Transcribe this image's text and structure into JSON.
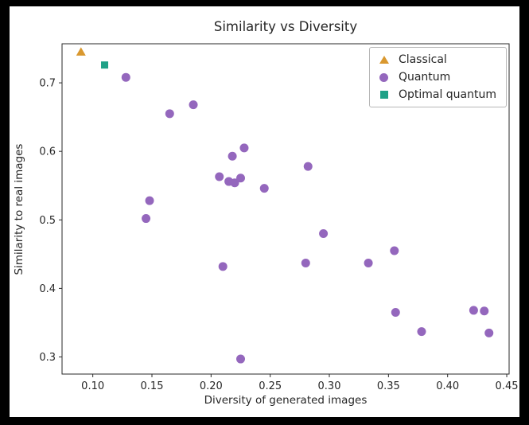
{
  "chart_data": {
    "type": "scatter",
    "title": "Similarity vs Diversity",
    "xlabel": "Diversity of generated images",
    "ylabel": "Similarity to real images",
    "xlim": [
      0.074,
      0.452
    ],
    "ylim": [
      0.275,
      0.757
    ],
    "xticks": [
      0.1,
      0.15,
      0.2,
      0.25,
      0.3,
      0.35,
      0.4,
      0.45
    ],
    "xtick_labels": [
      "0.10",
      "0.15",
      "0.20",
      "0.25",
      "0.30",
      "0.35",
      "0.40",
      "0.45"
    ],
    "yticks": [
      0.3,
      0.4,
      0.5,
      0.6,
      0.7
    ],
    "ytick_labels": [
      "0.3",
      "0.4",
      "0.5",
      "0.6",
      "0.7"
    ],
    "grid": false,
    "legend_position": "upper right",
    "axis_color": "#2a2a2a",
    "series": [
      {
        "name": "Classical",
        "marker": "triangle",
        "color": "#d9982f",
        "points": [
          [
            0.09,
            0.745
          ]
        ]
      },
      {
        "name": "Quantum",
        "marker": "circle",
        "color": "#9467bd",
        "points": [
          [
            0.128,
            0.708
          ],
          [
            0.165,
            0.655
          ],
          [
            0.185,
            0.668
          ],
          [
            0.148,
            0.528
          ],
          [
            0.145,
            0.502
          ],
          [
            0.207,
            0.563
          ],
          [
            0.218,
            0.593
          ],
          [
            0.228,
            0.605
          ],
          [
            0.215,
            0.556
          ],
          [
            0.22,
            0.554
          ],
          [
            0.225,
            0.561
          ],
          [
            0.245,
            0.546
          ],
          [
            0.282,
            0.578
          ],
          [
            0.21,
            0.432
          ],
          [
            0.28,
            0.437
          ],
          [
            0.295,
            0.48
          ],
          [
            0.333,
            0.437
          ],
          [
            0.355,
            0.455
          ],
          [
            0.356,
            0.365
          ],
          [
            0.378,
            0.337
          ],
          [
            0.422,
            0.368
          ],
          [
            0.431,
            0.367
          ],
          [
            0.435,
            0.335
          ],
          [
            0.225,
            0.297
          ]
        ]
      },
      {
        "name": "Optimal quantum",
        "marker": "square",
        "color": "#1fa187",
        "points": [
          [
            0.11,
            0.726
          ]
        ]
      }
    ]
  }
}
